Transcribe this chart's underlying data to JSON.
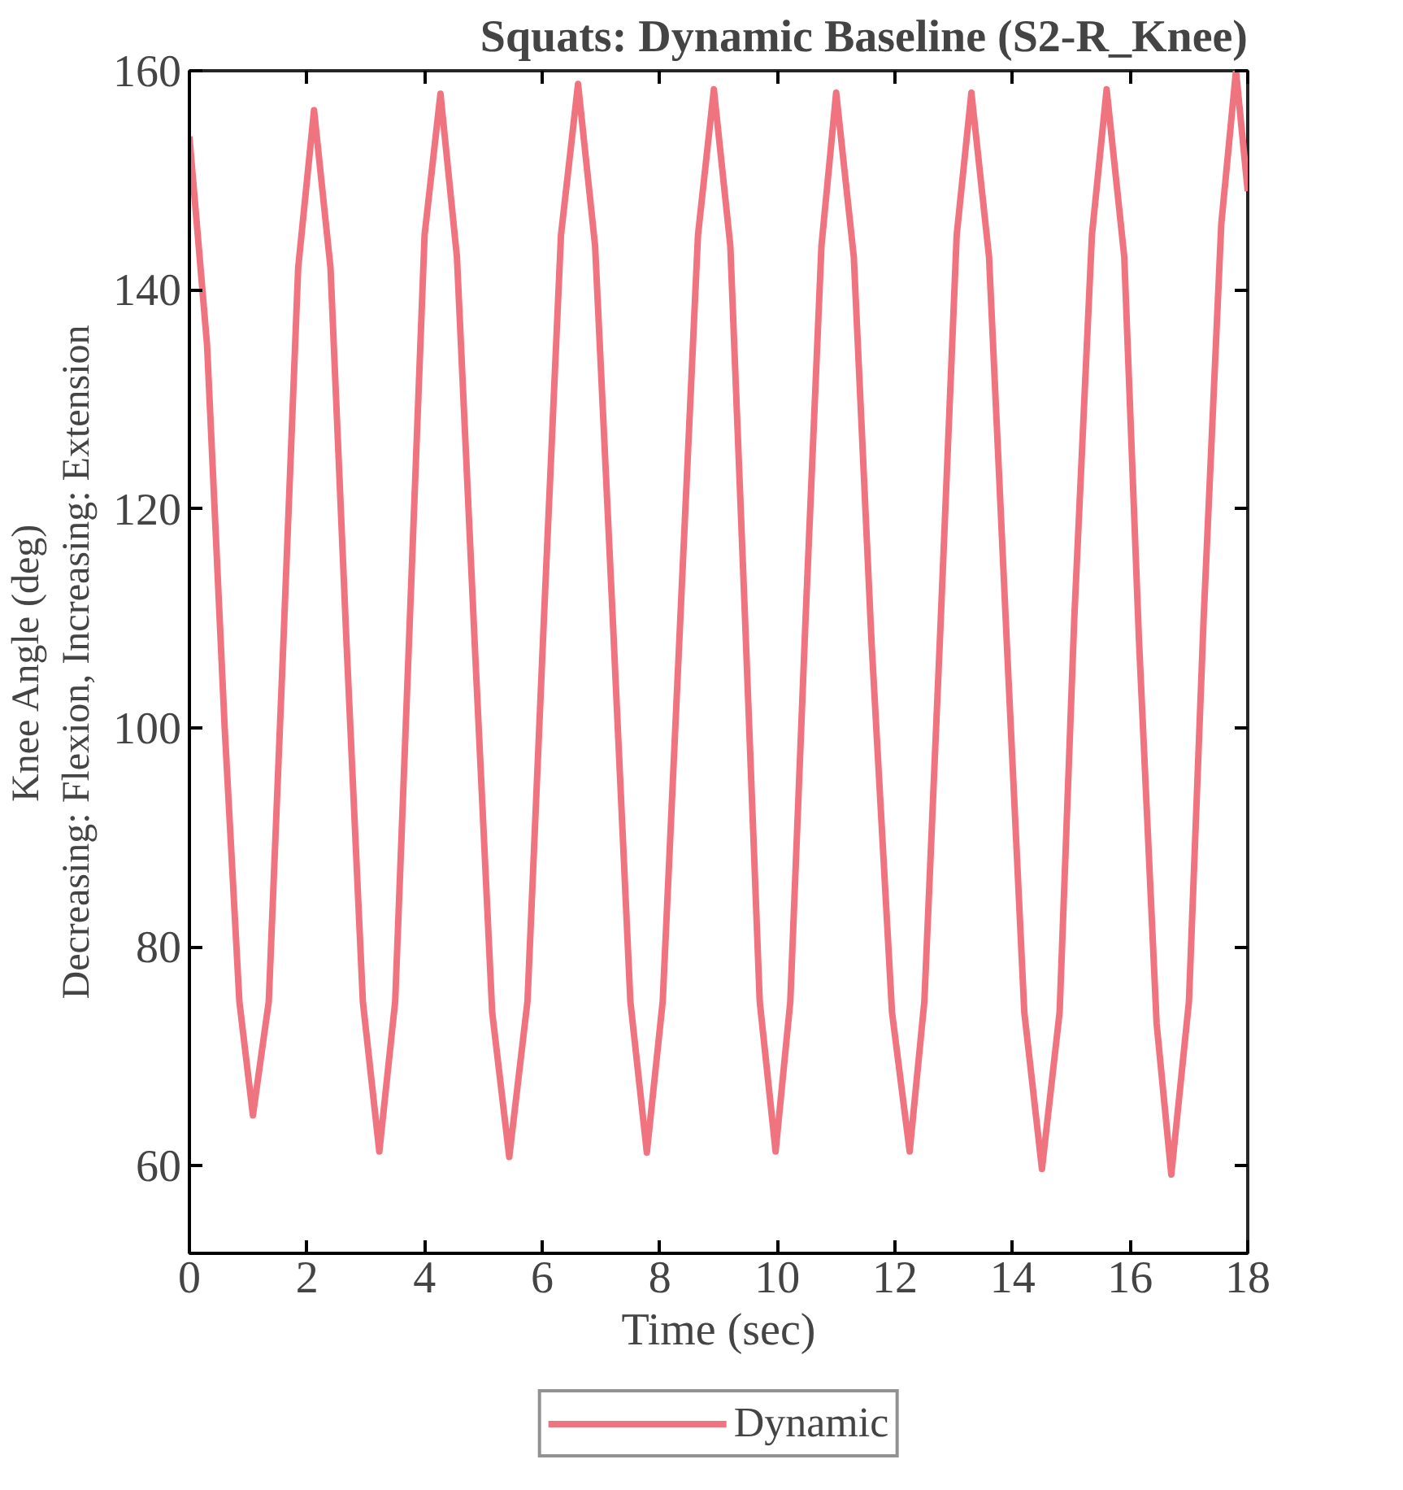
{
  "chart_data": {
    "type": "line",
    "title": "Squats: Dynamic Baseline (S2-R_Knee)",
    "xlabel": "Time (sec)",
    "ylabel": "Knee Angle (deg)\nDecreasing: Flexion, Increasing: Extension",
    "x": [
      0,
      0.3,
      0.6,
      0.85,
      1.08,
      1.35,
      1.6,
      1.85,
      2.12,
      2.4,
      2.67,
      2.95,
      3.23,
      3.5,
      3.75,
      4.0,
      4.27,
      4.55,
      4.85,
      5.15,
      5.44,
      5.75,
      6.03,
      6.32,
      6.61,
      6.9,
      7.2,
      7.5,
      7.78,
      8.05,
      8.35,
      8.65,
      8.92,
      9.2,
      9.45,
      9.7,
      9.97,
      10.22,
      10.48,
      10.75,
      11.0,
      11.3,
      11.6,
      11.95,
      12.25,
      12.5,
      12.78,
      13.05,
      13.3,
      13.6,
      13.9,
      14.2,
      14.5,
      14.8,
      15.05,
      15.35,
      15.6,
      15.9,
      16.15,
      16.45,
      16.7,
      17.0,
      17.25,
      17.55,
      17.8,
      18.0
    ],
    "series": [
      {
        "name": "Dynamic",
        "color": "#f07480",
        "values": [
          154,
          135,
          100,
          75,
          64.6,
          75,
          108,
          142,
          156.4,
          142,
          108,
          75,
          61.3,
          75,
          110,
          145,
          157.9,
          143,
          108,
          74,
          60.8,
          75,
          110,
          145,
          158.8,
          144,
          110,
          75,
          61.2,
          75,
          110,
          145,
          158.3,
          144,
          110,
          75,
          61.3,
          75,
          110,
          144,
          158,
          143,
          108,
          74,
          61.3,
          75,
          110,
          145,
          158,
          143,
          108,
          74,
          59.7,
          74,
          110,
          145,
          158.3,
          143,
          108,
          73,
          59.2,
          75,
          110,
          146,
          160,
          149
        ]
      }
    ],
    "xlim": [
      0,
      18
    ],
    "ylim": [
      52,
      160
    ],
    "xticks": [
      0,
      2,
      4,
      6,
      8,
      10,
      12,
      14,
      16,
      18
    ],
    "yticks": [
      60,
      80,
      100,
      120,
      140,
      160
    ],
    "grid": false,
    "legend": "bottom",
    "marker": "none",
    "line_style": "solid"
  }
}
